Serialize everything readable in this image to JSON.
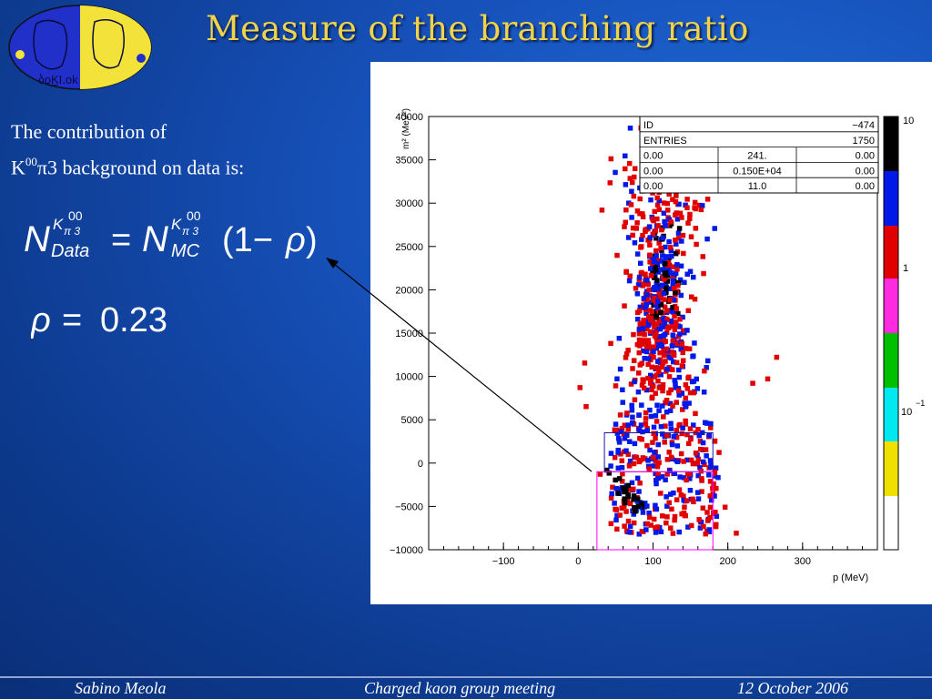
{
  "slide": {
    "title": "Measure of the branching ratio",
    "intro_line1": "The contribution of",
    "intro_k": "K",
    "intro_k_sup": "00",
    "intro_rest": "π3 background on data is:",
    "formula": {
      "lhs_N": "N",
      "lhs_sup": "K",
      "lhs_sup_idx": "π 3",
      "lhs_sup_top": "00",
      "lhs_sub": "Data",
      "equals": "=",
      "rhs_N": "N",
      "rhs_sup": "K",
      "rhs_sup_idx": "π 3",
      "rhs_sup_top": "00",
      "rhs_sub": "MC",
      "paren_expr": "(1−",
      "rho": "ρ",
      "close_paren": ")"
    },
    "rho_line": {
      "rho": "ρ",
      "equals": "=",
      "value": "0.23"
    }
  },
  "logo": {
    "text": "ბο͟ΚΙ.οk"
  },
  "stats_box": {
    "rows": [
      [
        "ID",
        "",
        "−474"
      ],
      [
        "ENTRIES",
        "",
        "1750"
      ],
      [
        "0.00",
        "241.",
        "0.00"
      ],
      [
        "0.00",
        "0.150E+04",
        "0.00"
      ],
      [
        "0.00",
        "11.0",
        "0.00"
      ]
    ]
  },
  "chart_data": {
    "type": "heatmap",
    "title": "",
    "xlabel": "p (MeV)",
    "ylabel": "m² (MeV²)",
    "xlim": [
      -200,
      400
    ],
    "ylim": [
      -10000,
      40000
    ],
    "x_ticks": [
      "−100",
      "0",
      "100",
      "200",
      "300"
    ],
    "y_ticks": [
      "40000",
      "35000",
      "30000",
      "25000",
      "20000",
      "15000",
      "10000",
      "5000",
      "0",
      "−5000",
      "−10000"
    ],
    "colorbar_labels": [
      "10",
      "1",
      "10",
      "−1"
    ],
    "colorbar_colors": [
      "#000000",
      "#0018e8",
      "#e00000",
      "#ff2be0",
      "#00c000",
      "#00e8f0",
      "#f0e000",
      "#ffffff"
    ],
    "cut_box_blue": {
      "x": [
        35,
        180
      ],
      "y": [
        -1000,
        3500
      ]
    },
    "cut_box_magenta": {
      "x": [
        25,
        180
      ],
      "y": [
        -10000,
        -1000
      ]
    }
  },
  "footer": {
    "author": "Sabino Meola",
    "meeting": "Charged kaon group meeting",
    "date": "12 October 2006"
  }
}
